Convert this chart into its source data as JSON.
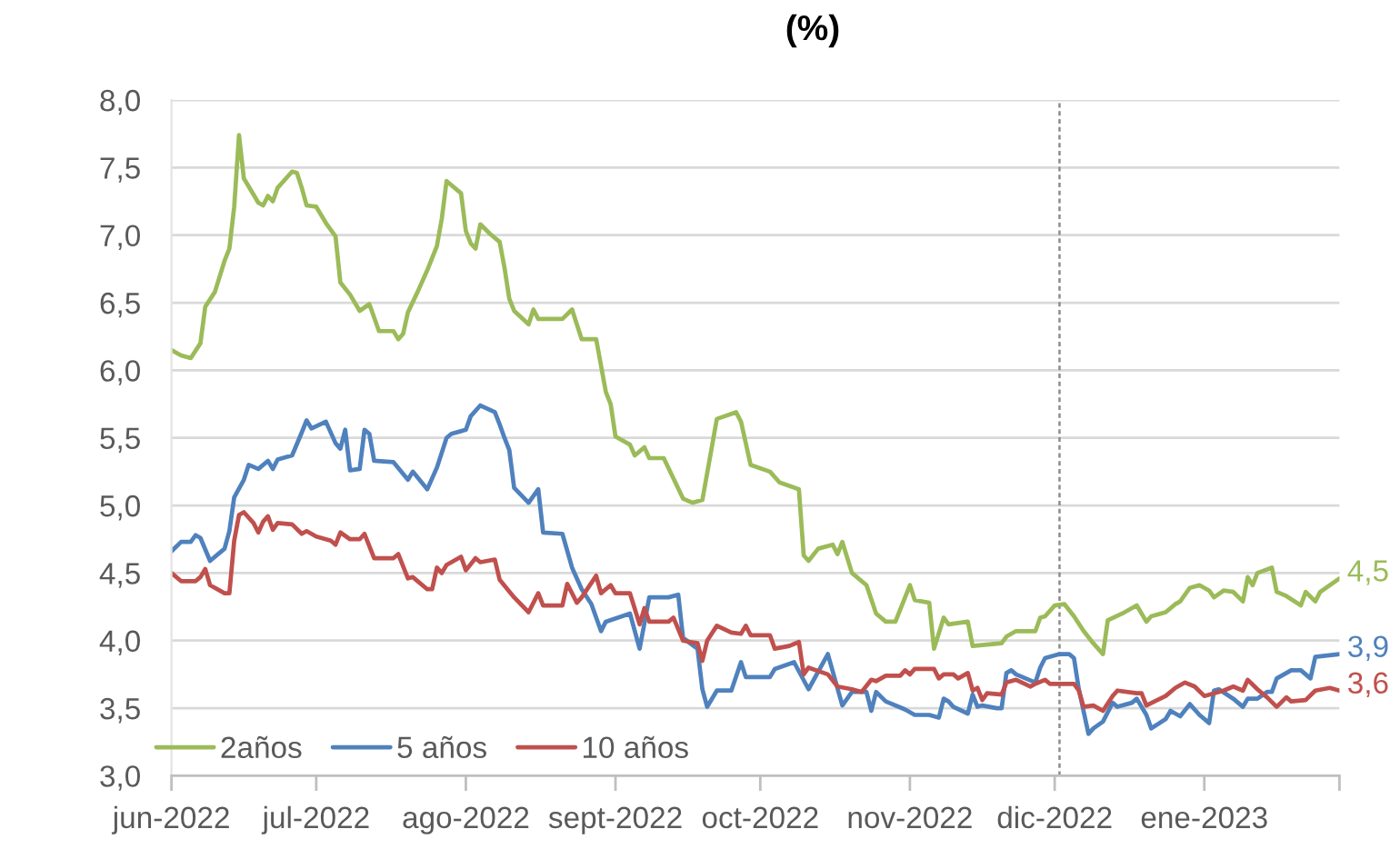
{
  "chart_data": {
    "type": "line",
    "title": "(%)",
    "xlim": [
      "2022-06-01",
      "2023-01-29"
    ],
    "xticks": [
      {
        "value": "2022-06-01",
        "label": "jun-2022"
      },
      {
        "value": "2022-07-01",
        "label": "jul-2022"
      },
      {
        "value": "2022-08-01",
        "label": "ago-2022"
      },
      {
        "value": "2022-09-01",
        "label": "sept-2022"
      },
      {
        "value": "2022-10-01",
        "label": "oct-2022"
      },
      {
        "value": "2022-11-01",
        "label": "nov-2022"
      },
      {
        "value": "2022-12-01",
        "label": "dic-2022"
      },
      {
        "value": "2023-01-01",
        "label": "ene-2023"
      },
      {
        "value": "2023-01-29",
        "label": null
      }
    ],
    "ylim": [
      3,
      8
    ],
    "yticks": [
      {
        "value": 3,
        "label": "3,0"
      },
      {
        "value": 3.5,
        "label": "3,5"
      },
      {
        "value": 4,
        "label": "4,0"
      },
      {
        "value": 4.5,
        "label": "4,5"
      },
      {
        "value": 5,
        "label": "5,0"
      },
      {
        "value": 5.5,
        "label": "5,5"
      },
      {
        "value": 6,
        "label": "6,0"
      },
      {
        "value": 6.5,
        "label": "6,5"
      },
      {
        "value": 7,
        "label": "7,0"
      },
      {
        "value": 7.5,
        "label": "7,5"
      },
      {
        "value": 8,
        "label": "8,0"
      }
    ],
    "grid": "y",
    "legend": "bottom left",
    "ref_lines": [
      {
        "axis": "x",
        "value": "2022-12-02",
        "color": "#8c8c8c",
        "line_style": "dashed"
      }
    ],
    "series": [
      {
        "name": "2años",
        "color": "#9bbb59",
        "x": [
          "2022-06-01",
          "2022-06-03",
          "2022-06-05",
          "2022-06-07",
          "2022-06-08",
          "2022-06-10",
          "2022-06-12",
          "2022-06-13",
          "2022-06-14",
          "2022-06-15",
          "2022-06-16",
          "2022-06-18",
          "2022-06-19",
          "2022-06-20",
          "2022-06-21",
          "2022-06-22",
          "2022-06-23",
          "2022-06-26",
          "2022-06-27",
          "2022-06-28",
          "2022-06-29",
          "2022-07-01",
          "2022-07-03",
          "2022-07-05",
          "2022-07-06",
          "2022-07-08",
          "2022-07-10",
          "2022-07-12",
          "2022-07-14",
          "2022-07-17",
          "2022-07-18",
          "2022-07-19",
          "2022-07-20",
          "2022-07-22",
          "2022-07-24",
          "2022-07-26",
          "2022-07-27",
          "2022-07-28",
          "2022-07-31",
          "2022-08-01",
          "2022-08-02",
          "2022-08-03",
          "2022-08-04",
          "2022-08-06",
          "2022-08-08",
          "2022-08-09",
          "2022-08-10",
          "2022-08-11",
          "2022-08-14",
          "2022-08-15",
          "2022-08-16",
          "2022-08-21",
          "2022-08-23",
          "2022-08-25",
          "2022-08-28",
          "2022-08-30",
          "2022-08-31",
          "2022-09-01",
          "2022-09-04",
          "2022-09-05",
          "2022-09-07",
          "2022-09-08",
          "2022-09-11",
          "2022-09-15",
          "2022-09-17",
          "2022-09-19",
          "2022-09-22",
          "2022-09-26",
          "2022-09-27",
          "2022-09-29",
          "2022-10-03",
          "2022-10-05",
          "2022-10-09",
          "2022-10-10",
          "2022-10-11",
          "2022-10-13",
          "2022-10-16",
          "2022-10-17",
          "2022-10-18",
          "2022-10-20",
          "2022-10-23",
          "2022-10-25",
          "2022-10-27",
          "2022-10-29",
          "2022-11-01",
          "2022-11-02",
          "2022-11-05",
          "2022-11-06",
          "2022-11-08",
          "2022-11-09",
          "2022-11-13",
          "2022-11-14",
          "2022-11-20",
          "2022-11-21",
          "2022-11-23",
          "2022-11-27",
          "2022-11-28",
          "2022-11-29",
          "2022-12-01",
          "2022-12-03",
          "2022-12-05",
          "2022-12-07",
          "2022-12-09",
          "2022-12-11",
          "2022-12-12",
          "2022-12-15",
          "2022-12-18",
          "2022-12-20",
          "2022-12-21",
          "2022-12-24",
          "2022-12-26",
          "2022-12-27",
          "2022-12-29",
          "2022-12-31",
          "2023-01-02",
          "2023-01-03",
          "2023-01-05",
          "2023-01-07",
          "2023-01-09",
          "2023-01-10",
          "2023-01-11",
          "2023-01-12",
          "2023-01-15",
          "2023-01-16",
          "2023-01-18",
          "2023-01-21",
          "2023-01-22",
          "2023-01-24",
          "2023-01-25",
          "2023-01-29"
        ],
        "values": [
          6.15,
          6.11,
          6.09,
          6.2,
          6.47,
          6.58,
          6.81,
          6.9,
          7.21,
          7.74,
          7.42,
          7.3,
          7.24,
          7.22,
          7.29,
          7.25,
          7.35,
          7.47,
          7.46,
          7.35,
          7.22,
          7.21,
          7.09,
          6.99,
          6.65,
          6.56,
          6.44,
          6.49,
          6.29,
          6.29,
          6.23,
          6.27,
          6.43,
          6.58,
          6.74,
          6.92,
          7.12,
          7.4,
          7.31,
          7.03,
          6.94,
          6.9,
          7.08,
          7.01,
          6.95,
          6.76,
          6.53,
          6.44,
          6.34,
          6.45,
          6.38,
          6.38,
          6.45,
          6.23,
          6.23,
          5.84,
          5.75,
          5.51,
          5.45,
          5.37,
          5.43,
          5.35,
          5.35,
          5.05,
          5.02,
          5.04,
          5.64,
          5.69,
          5.62,
          5.3,
          5.25,
          5.17,
          5.12,
          4.63,
          4.59,
          4.68,
          4.71,
          4.64,
          4.73,
          4.5,
          4.41,
          4.2,
          4.14,
          4.14,
          4.41,
          4.3,
          4.28,
          3.94,
          4.17,
          4.12,
          4.14,
          3.96,
          3.98,
          4.03,
          4.07,
          4.07,
          4.17,
          4.18,
          4.26,
          4.27,
          4.18,
          4.07,
          3.98,
          3.9,
          4.15,
          4.2,
          4.26,
          4.14,
          4.18,
          4.21,
          4.27,
          4.29,
          4.39,
          4.41,
          4.37,
          4.32,
          4.37,
          4.36,
          4.29,
          4.47,
          4.41,
          4.5,
          4.54,
          4.36,
          4.33,
          4.26,
          4.36,
          4.29,
          4.36,
          4.46
        ],
        "value_labels": [
          null,
          null,
          null,
          null,
          null,
          null,
          null,
          null,
          null,
          null,
          null,
          null,
          null,
          null,
          null,
          null,
          null,
          null,
          null,
          null,
          null,
          null,
          null,
          null,
          null,
          null,
          null,
          null,
          null,
          null,
          null,
          null,
          null,
          null,
          null,
          null,
          null,
          null,
          null,
          null,
          null,
          null,
          null,
          null,
          null,
          null,
          null,
          null,
          null,
          null,
          null,
          null,
          null,
          null,
          null,
          null,
          null,
          null,
          null,
          null,
          null,
          null,
          null,
          null,
          null,
          null,
          null,
          null,
          null,
          null,
          null,
          null,
          null,
          null,
          null,
          null,
          null,
          null,
          null,
          null,
          null,
          null,
          null,
          null,
          null,
          null,
          null,
          null,
          null,
          null,
          null,
          null,
          null,
          null,
          null,
          null,
          null,
          null,
          null,
          null,
          null,
          null,
          null,
          null,
          null,
          null,
          null,
          null,
          null,
          null,
          null,
          null,
          null,
          null,
          null,
          null,
          null,
          null,
          null,
          null,
          null,
          null,
          null,
          null,
          null,
          null,
          null,
          null,
          null,
          "4,5"
        ]
      },
      {
        "name": "5 años",
        "color": "#4f81bd",
        "x": [
          "2022-06-01",
          "2022-06-03",
          "2022-06-05",
          "2022-06-06",
          "2022-06-07",
          "2022-06-09",
          "2022-06-12",
          "2022-06-13",
          "2022-06-14",
          "2022-06-16",
          "2022-06-17",
          "2022-06-19",
          "2022-06-21",
          "2022-06-22",
          "2022-06-23",
          "2022-06-26",
          "2022-06-28",
          "2022-06-29",
          "2022-06-30",
          "2022-07-03",
          "2022-07-05",
          "2022-07-06",
          "2022-07-07",
          "2022-07-08",
          "2022-07-10",
          "2022-07-11",
          "2022-07-12",
          "2022-07-13",
          "2022-07-17",
          "2022-07-20",
          "2022-07-21",
          "2022-07-24",
          "2022-07-26",
          "2022-07-28",
          "2022-07-29",
          "2022-08-01",
          "2022-08-02",
          "2022-08-04",
          "2022-08-07",
          "2022-08-08",
          "2022-08-09",
          "2022-08-10",
          "2022-08-11",
          "2022-08-14",
          "2022-08-16",
          "2022-08-17",
          "2022-08-21",
          "2022-08-23",
          "2022-08-25",
          "2022-08-27",
          "2022-08-29",
          "2022-08-30",
          "2022-09-04",
          "2022-09-06",
          "2022-09-08",
          "2022-09-12",
          "2022-09-14",
          "2022-09-15",
          "2022-09-18",
          "2022-09-19",
          "2022-09-20",
          "2022-09-22",
          "2022-09-25",
          "2022-09-27",
          "2022-09-28",
          "2022-10-03",
          "2022-10-04",
          "2022-10-08",
          "2022-10-11",
          "2022-10-15",
          "2022-10-18",
          "2022-10-20",
          "2022-10-23",
          "2022-10-24",
          "2022-10-25",
          "2022-10-27",
          "2022-10-31",
          "2022-11-02",
          "2022-11-05",
          "2022-11-07",
          "2022-11-08",
          "2022-11-09",
          "2022-11-10",
          "2022-11-13",
          "2022-11-14",
          "2022-11-15",
          "2022-11-16",
          "2022-11-19",
          "2022-11-20",
          "2022-11-21",
          "2022-11-22",
          "2022-11-23",
          "2022-11-27",
          "2022-11-28",
          "2022-11-29",
          "2022-12-02",
          "2022-12-04",
          "2022-12-05",
          "2022-12-06",
          "2022-12-08",
          "2022-12-09",
          "2022-12-11",
          "2022-12-13",
          "2022-12-14",
          "2022-12-17",
          "2022-12-18",
          "2022-12-20",
          "2022-12-21",
          "2022-12-24",
          "2022-12-25",
          "2022-12-27",
          "2022-12-29",
          "2022-12-31",
          "2023-01-02",
          "2023-01-03",
          "2023-01-04",
          "2023-01-07",
          "2023-01-09",
          "2023-01-10",
          "2023-01-12",
          "2023-01-14",
          "2023-01-15",
          "2023-01-16",
          "2023-01-19",
          "2023-01-21",
          "2023-01-23",
          "2023-01-24",
          "2023-01-29"
        ],
        "values": [
          4.66,
          4.73,
          4.73,
          4.78,
          4.76,
          4.59,
          4.68,
          4.81,
          5.06,
          5.19,
          5.3,
          5.27,
          5.33,
          5.27,
          5.34,
          5.37,
          5.54,
          5.63,
          5.57,
          5.62,
          5.46,
          5.42,
          5.56,
          5.26,
          5.27,
          5.56,
          5.53,
          5.33,
          5.32,
          5.19,
          5.25,
          5.12,
          5.28,
          5.5,
          5.53,
          5.56,
          5.66,
          5.74,
          5.69,
          5.6,
          5.5,
          5.41,
          5.13,
          5.02,
          5.12,
          4.8,
          4.79,
          4.54,
          4.38,
          4.27,
          4.07,
          4.14,
          4.2,
          3.94,
          4.32,
          4.32,
          4.34,
          4.02,
          3.94,
          3.64,
          3.51,
          3.63,
          3.63,
          3.84,
          3.73,
          3.73,
          3.79,
          3.84,
          3.64,
          3.9,
          3.52,
          3.62,
          3.62,
          3.48,
          3.62,
          3.55,
          3.49,
          3.45,
          3.45,
          3.43,
          3.57,
          3.55,
          3.51,
          3.46,
          3.6,
          3.51,
          3.52,
          3.5,
          3.5,
          3.76,
          3.78,
          3.75,
          3.69,
          3.8,
          3.87,
          3.9,
          3.9,
          3.87,
          3.64,
          3.31,
          3.35,
          3.4,
          3.54,
          3.51,
          3.54,
          3.57,
          3.45,
          3.35,
          3.42,
          3.48,
          3.44,
          3.53,
          3.45,
          3.39,
          3.63,
          3.64,
          3.57,
          3.51,
          3.57,
          3.57,
          3.62,
          3.62,
          3.72,
          3.78,
          3.78,
          3.72,
          3.88,
          3.9
        ],
        "value_labels": [
          null,
          null,
          null,
          null,
          null,
          null,
          null,
          null,
          null,
          null,
          null,
          null,
          null,
          null,
          null,
          null,
          null,
          null,
          null,
          null,
          null,
          null,
          null,
          null,
          null,
          null,
          null,
          null,
          null,
          null,
          null,
          null,
          null,
          null,
          null,
          null,
          null,
          null,
          null,
          null,
          null,
          null,
          null,
          null,
          null,
          null,
          null,
          null,
          null,
          null,
          null,
          null,
          null,
          null,
          null,
          null,
          null,
          null,
          null,
          null,
          null,
          null,
          null,
          null,
          null,
          null,
          null,
          null,
          null,
          null,
          null,
          null,
          null,
          null,
          null,
          null,
          null,
          null,
          null,
          null,
          null,
          null,
          null,
          null,
          null,
          null,
          null,
          null,
          null,
          null,
          null,
          null,
          null,
          null,
          null,
          null,
          null,
          null,
          null,
          null,
          null,
          null,
          null,
          null,
          null,
          null,
          null,
          null,
          null,
          null,
          null,
          null,
          null,
          null,
          null,
          null,
          null,
          null,
          null,
          null,
          null,
          null,
          null,
          null,
          null,
          null,
          null,
          "3,9"
        ]
      },
      {
        "name": "10 años",
        "color": "#c0504d",
        "x": [
          "2022-06-01",
          "2022-06-03",
          "2022-06-06",
          "2022-06-07",
          "2022-06-08",
          "2022-06-09",
          "2022-06-12",
          "2022-06-13",
          "2022-06-14",
          "2022-06-15",
          "2022-06-16",
          "2022-06-18",
          "2022-06-19",
          "2022-06-20",
          "2022-06-21",
          "2022-06-22",
          "2022-06-23",
          "2022-06-26",
          "2022-06-28",
          "2022-06-29",
          "2022-07-01",
          "2022-07-04",
          "2022-07-05",
          "2022-07-06",
          "2022-07-08",
          "2022-07-10",
          "2022-07-11",
          "2022-07-13",
          "2022-07-17",
          "2022-07-18",
          "2022-07-20",
          "2022-07-21",
          "2022-07-24",
          "2022-07-25",
          "2022-07-26",
          "2022-07-27",
          "2022-07-28",
          "2022-07-31",
          "2022-08-01",
          "2022-08-03",
          "2022-08-04",
          "2022-08-07",
          "2022-08-08",
          "2022-08-11",
          "2022-08-14",
          "2022-08-16",
          "2022-08-17",
          "2022-08-21",
          "2022-08-22",
          "2022-08-24",
          "2022-08-25",
          "2022-08-28",
          "2022-08-29",
          "2022-08-31",
          "2022-09-01",
          "2022-09-04",
          "2022-09-06",
          "2022-09-07",
          "2022-09-08",
          "2022-09-12",
          "2022-09-13",
          "2022-09-15",
          "2022-09-18",
          "2022-09-19",
          "2022-09-20",
          "2022-09-22",
          "2022-09-25",
          "2022-09-27",
          "2022-09-28",
          "2022-09-29",
          "2022-10-03",
          "2022-10-04",
          "2022-10-07",
          "2022-10-09",
          "2022-10-10",
          "2022-10-11",
          "2022-10-15",
          "2022-10-17",
          "2022-10-20",
          "2022-10-22",
          "2022-10-24",
          "2022-10-25",
          "2022-10-27",
          "2022-10-30",
          "2022-10-31",
          "2022-11-01",
          "2022-11-02",
          "2022-11-06",
          "2022-11-07",
          "2022-11-08",
          "2022-11-10",
          "2022-11-11",
          "2022-11-13",
          "2022-11-14",
          "2022-11-15",
          "2022-11-16",
          "2022-11-17",
          "2022-11-20",
          "2022-11-21",
          "2022-11-23",
          "2022-11-26",
          "2022-11-27",
          "2022-11-29",
          "2022-11-30",
          "2022-12-03",
          "2022-12-05",
          "2022-12-06",
          "2022-12-07",
          "2022-12-09",
          "2022-12-11",
          "2022-12-13",
          "2022-12-14",
          "2022-12-18",
          "2022-12-19",
          "2022-12-20",
          "2022-12-24",
          "2022-12-26",
          "2022-12-28",
          "2022-12-30",
          "2023-01-01",
          "2023-01-05",
          "2023-01-07",
          "2023-01-09",
          "2023-01-10",
          "2023-01-12",
          "2023-01-14",
          "2023-01-16",
          "2023-01-18",
          "2023-01-19",
          "2023-01-22",
          "2023-01-24",
          "2023-01-27",
          "2023-01-29"
        ],
        "values": [
          4.5,
          4.44,
          4.44,
          4.47,
          4.53,
          4.41,
          4.35,
          4.35,
          4.74,
          4.93,
          4.95,
          4.87,
          4.8,
          4.88,
          4.92,
          4.82,
          4.87,
          4.86,
          4.79,
          4.81,
          4.77,
          4.74,
          4.71,
          4.8,
          4.75,
          4.75,
          4.79,
          4.61,
          4.61,
          4.64,
          4.46,
          4.47,
          4.38,
          4.38,
          4.54,
          4.5,
          4.56,
          4.62,
          4.52,
          4.61,
          4.58,
          4.6,
          4.45,
          4.32,
          4.21,
          4.35,
          4.26,
          4.26,
          4.42,
          4.28,
          4.32,
          4.48,
          4.35,
          4.41,
          4.35,
          4.35,
          4.12,
          4.24,
          4.14,
          4.14,
          4.17,
          4.0,
          3.98,
          3.85,
          4.0,
          4.11,
          4.06,
          4.05,
          4.11,
          4.04,
          4.04,
          3.94,
          3.96,
          3.99,
          3.75,
          3.8,
          3.75,
          3.66,
          3.64,
          3.62,
          3.71,
          3.7,
          3.74,
          3.74,
          3.78,
          3.75,
          3.79,
          3.79,
          3.72,
          3.75,
          3.75,
          3.72,
          3.76,
          3.63,
          3.65,
          3.56,
          3.61,
          3.6,
          3.69,
          3.71,
          3.66,
          3.68,
          3.71,
          3.68,
          3.68,
          3.68,
          3.63,
          3.51,
          3.52,
          3.48,
          3.59,
          3.63,
          3.61,
          3.61,
          3.52,
          3.59,
          3.65,
          3.69,
          3.66,
          3.59,
          3.63,
          3.66,
          3.63,
          3.71,
          3.64,
          3.58,
          3.51,
          3.58,
          3.55,
          3.56,
          3.63,
          3.65,
          3.63
        ],
        "value_labels": [
          null,
          null,
          null,
          null,
          null,
          null,
          null,
          null,
          null,
          null,
          null,
          null,
          null,
          null,
          null,
          null,
          null,
          null,
          null,
          null,
          null,
          null,
          null,
          null,
          null,
          null,
          null,
          null,
          null,
          null,
          null,
          null,
          null,
          null,
          null,
          null,
          null,
          null,
          null,
          null,
          null,
          null,
          null,
          null,
          null,
          null,
          null,
          null,
          null,
          null,
          null,
          null,
          null,
          null,
          null,
          null,
          null,
          null,
          null,
          null,
          null,
          null,
          null,
          null,
          null,
          null,
          null,
          null,
          null,
          null,
          null,
          null,
          null,
          null,
          null,
          null,
          null,
          null,
          null,
          null,
          null,
          null,
          null,
          null,
          null,
          null,
          null,
          null,
          null,
          null,
          null,
          null,
          null,
          null,
          null,
          null,
          null,
          null,
          null,
          null,
          null,
          null,
          null,
          null,
          null,
          null,
          null,
          null,
          null,
          null,
          null,
          null,
          null,
          null,
          null,
          null,
          null,
          null,
          null,
          null,
          null,
          null,
          null,
          null,
          null,
          null,
          null,
          null,
          null,
          null,
          null,
          null,
          "3,6"
        ]
      }
    ]
  }
}
